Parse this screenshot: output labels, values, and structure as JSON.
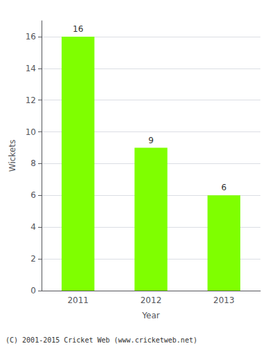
{
  "chart_data": {
    "type": "bar",
    "categories": [
      "2011",
      "2012",
      "2013"
    ],
    "values": [
      16,
      9,
      6
    ],
    "color": "#7FFF00",
    "xlabel": "Year",
    "ylabel": "Wickets",
    "ylim": [
      0,
      17
    ],
    "yticks": [
      0,
      2,
      4,
      6,
      8,
      10,
      12,
      14,
      16
    ],
    "grid": true,
    "data_labels": true,
    "annotations": [
      "(C) 2001-2015 Cricket Web (www.cricketweb.net)"
    ]
  }
}
